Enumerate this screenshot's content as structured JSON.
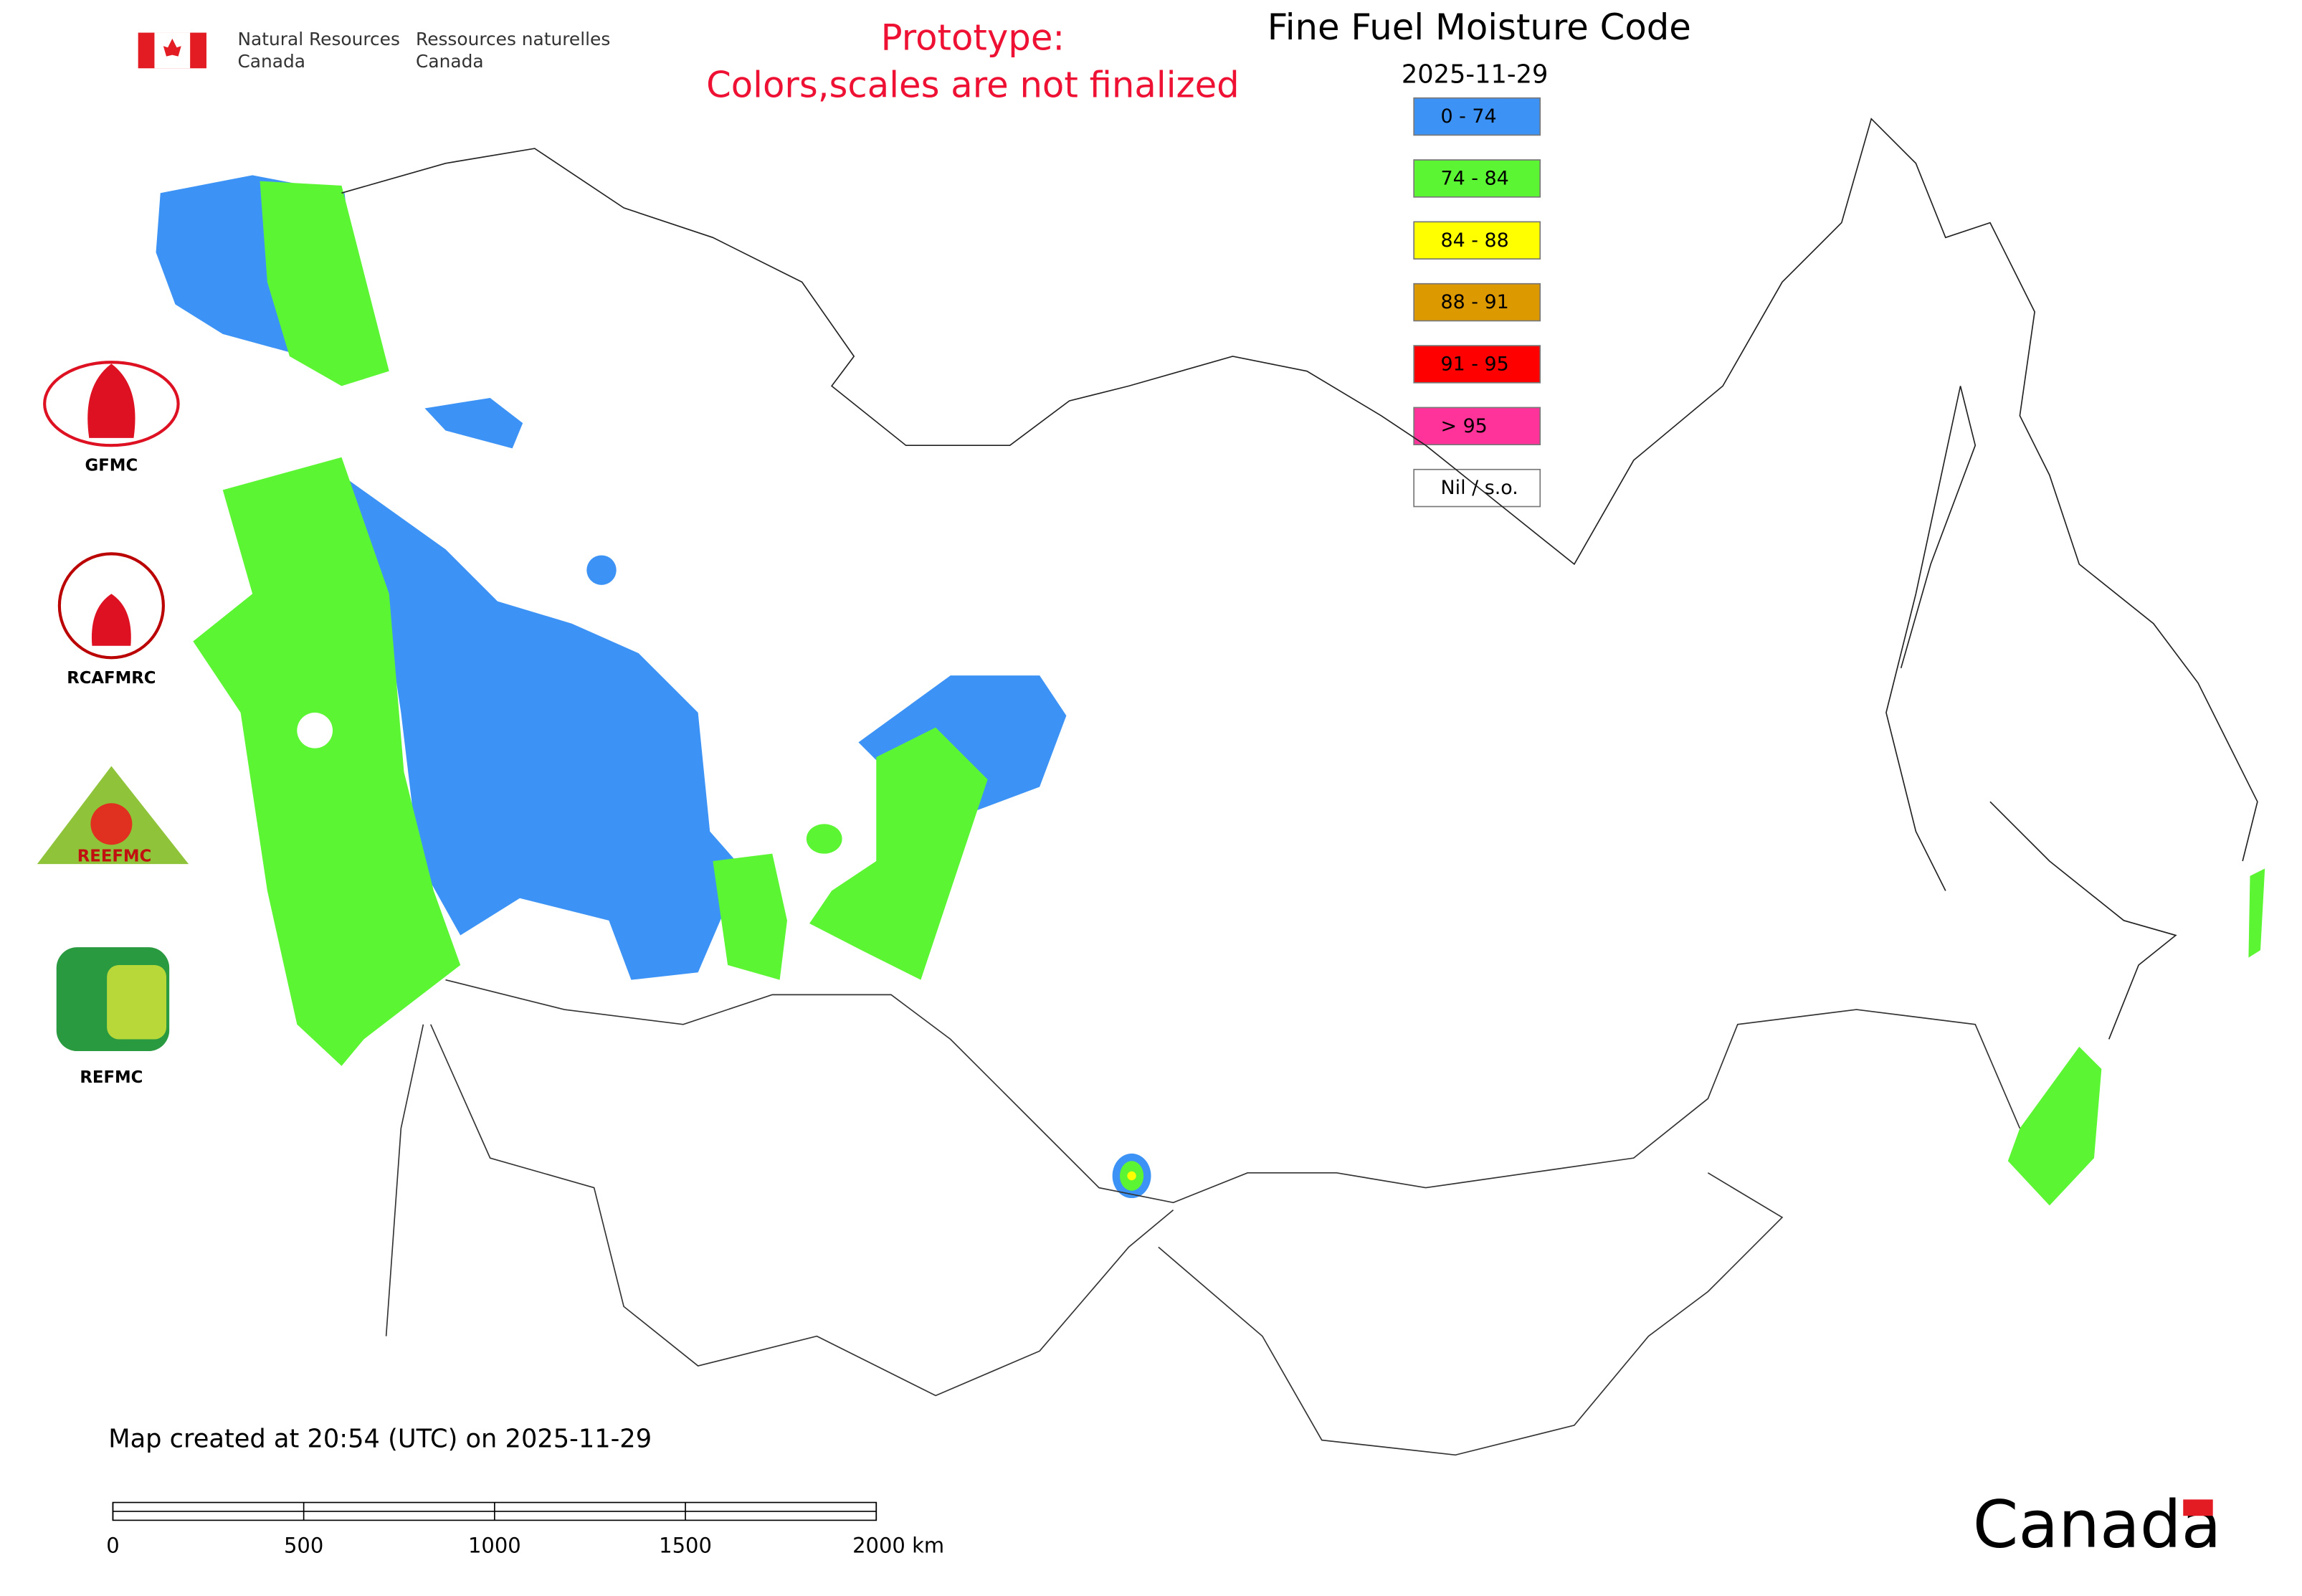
{
  "header": {
    "agency_en": [
      "Natural Resources",
      "Canada"
    ],
    "agency_fr": [
      "Ressources naturelles",
      "Canada"
    ],
    "notice": [
      "Prototype:",
      "Colors,scales are not finalized"
    ]
  },
  "title": "Fine Fuel Moisture Code",
  "date": "2025-11-29",
  "legend": [
    {
      "label": "0 - 74",
      "color": "#3d93f5"
    },
    {
      "label": "74 - 84",
      "color": "#5cf533"
    },
    {
      "label": "84 - 88",
      "color": "#ffff00"
    },
    {
      "label": "88 - 91",
      "color": "#dd9900"
    },
    {
      "label": "91 - 95",
      "color": "#ff0000"
    },
    {
      "label": "> 95",
      "color": "#ff3399"
    },
    {
      "label": "Nil / s.o.",
      "color": "#ffffff"
    }
  ],
  "partners": {
    "gfmc": "GFMC",
    "rcafmrc": "RCAFMRC",
    "reefmc": "REEFMC",
    "refmc": "REFMC"
  },
  "footer": {
    "created": "Map created at 20:54 (UTC) on 2025-11-29",
    "scale_ticks": [
      0,
      500,
      1000,
      1500,
      {
        "value": 2000,
        "label": "2000 km"
      }
    ],
    "wordmark": "Canada"
  }
}
